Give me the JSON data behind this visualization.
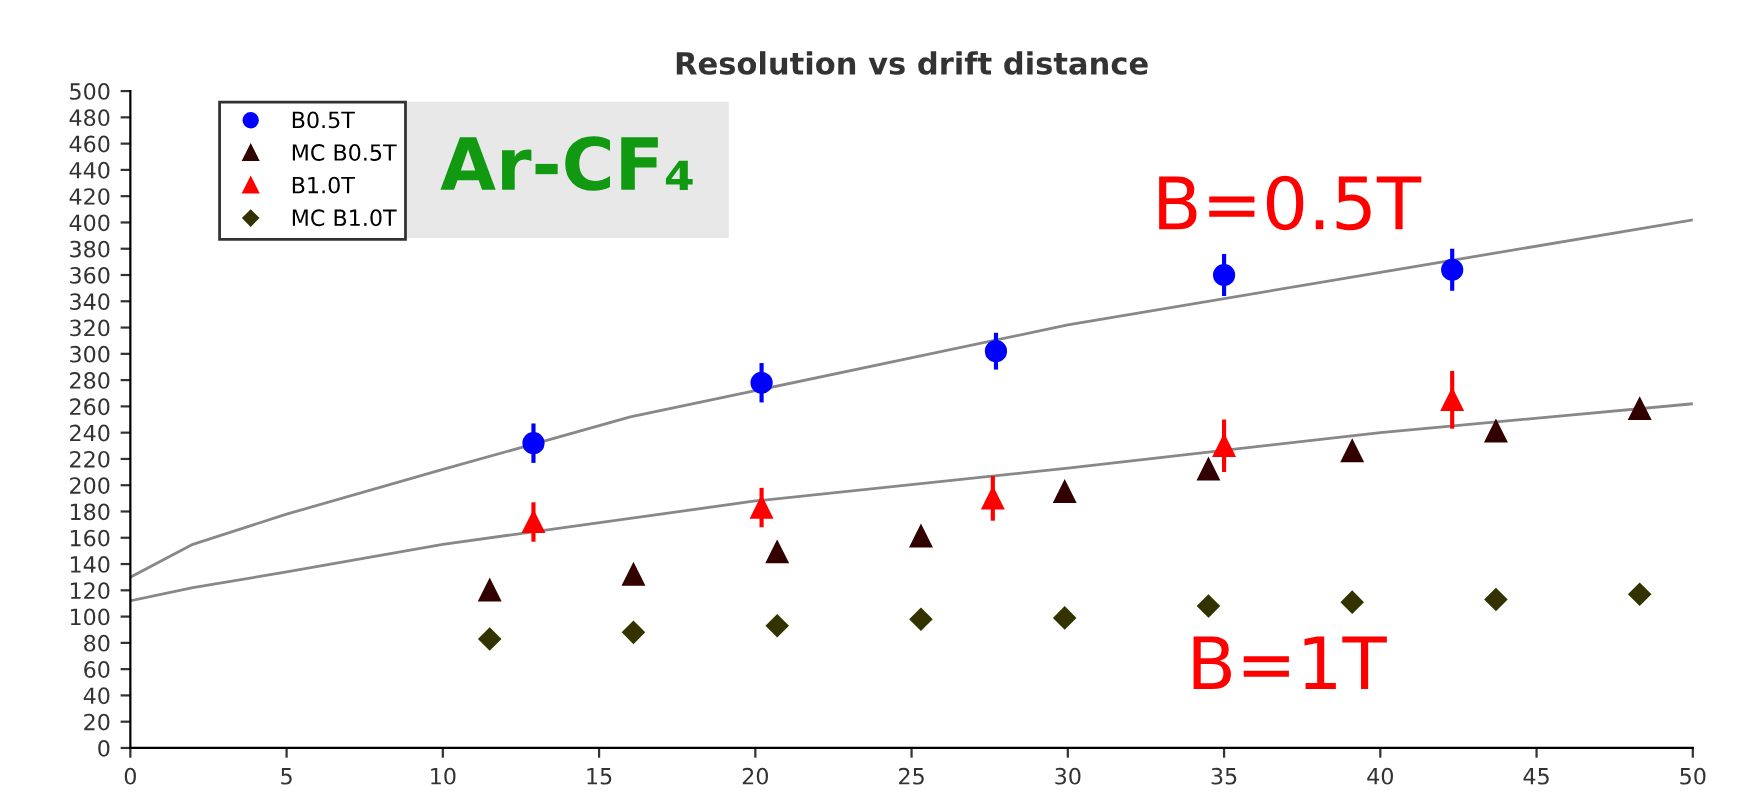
{
  "chart_data": {
    "type": "scatter",
    "title": "Resolution vs drift distance",
    "xlim": [
      0,
      50
    ],
    "xticks": [
      0,
      5,
      10,
      15,
      20,
      25,
      30,
      35,
      40,
      45,
      50
    ],
    "ylim": [
      0,
      500
    ],
    "yticks": [
      0,
      20,
      40,
      60,
      80,
      100,
      120,
      140,
      160,
      180,
      200,
      220,
      240,
      260,
      280,
      300,
      320,
      340,
      360,
      380,
      400,
      420,
      440,
      460,
      480,
      500
    ],
    "grid": false,
    "legend": "top left",
    "series": [
      {
        "name": "B0.5T",
        "color": "#0000ff",
        "marker": "circle",
        "x": [
          12.9,
          20.2,
          27.7,
          35.0,
          42.3
        ],
        "values": [
          232,
          278,
          302,
          360,
          364
        ],
        "errors": [
          15,
          15,
          14,
          16,
          16
        ]
      },
      {
        "name": "MC B0.5T",
        "color": "#330000",
        "marker": "triangle",
        "x": [
          11.5,
          16.1,
          20.7,
          25.3,
          29.9,
          34.5,
          39.1,
          43.7,
          48.3
        ],
        "values": [
          120,
          132,
          149,
          161,
          195,
          212,
          226,
          241,
          258
        ]
      },
      {
        "name": "B1.0T",
        "color": "#ff0000",
        "marker": "triangle",
        "x": [
          12.9,
          20.2,
          27.6,
          35.0,
          42.3
        ],
        "values": [
          172,
          183,
          190,
          230,
          265
        ],
        "errors": [
          15,
          15,
          17,
          20,
          22
        ]
      },
      {
        "name": "MC B1.0T",
        "color": "#333300",
        "marker": "diamond",
        "x": [
          11.5,
          16.1,
          20.7,
          25.3,
          29.9,
          34.5,
          39.1,
          43.7,
          48.3
        ],
        "values": [
          83,
          88,
          93,
          98,
          99,
          108,
          111,
          113,
          117
        ]
      },
      {
        "type": "line",
        "color": "#888888",
        "marker": "none",
        "x": [
          0,
          2,
          5,
          10,
          16,
          20,
          30,
          40,
          50
        ],
        "values": [
          130,
          155,
          178,
          212,
          252,
          272,
          322,
          362,
          402
        ]
      },
      {
        "type": "line",
        "color": "#888888",
        "marker": "none",
        "x": [
          0,
          2,
          5,
          10,
          20,
          30,
          40,
          50
        ],
        "values": [
          112,
          122,
          134,
          155,
          188,
          213,
          240,
          262
        ]
      }
    ],
    "annotations": [
      "Ar-CF₄",
      "B=0.5T",
      "B=1T"
    ]
  }
}
